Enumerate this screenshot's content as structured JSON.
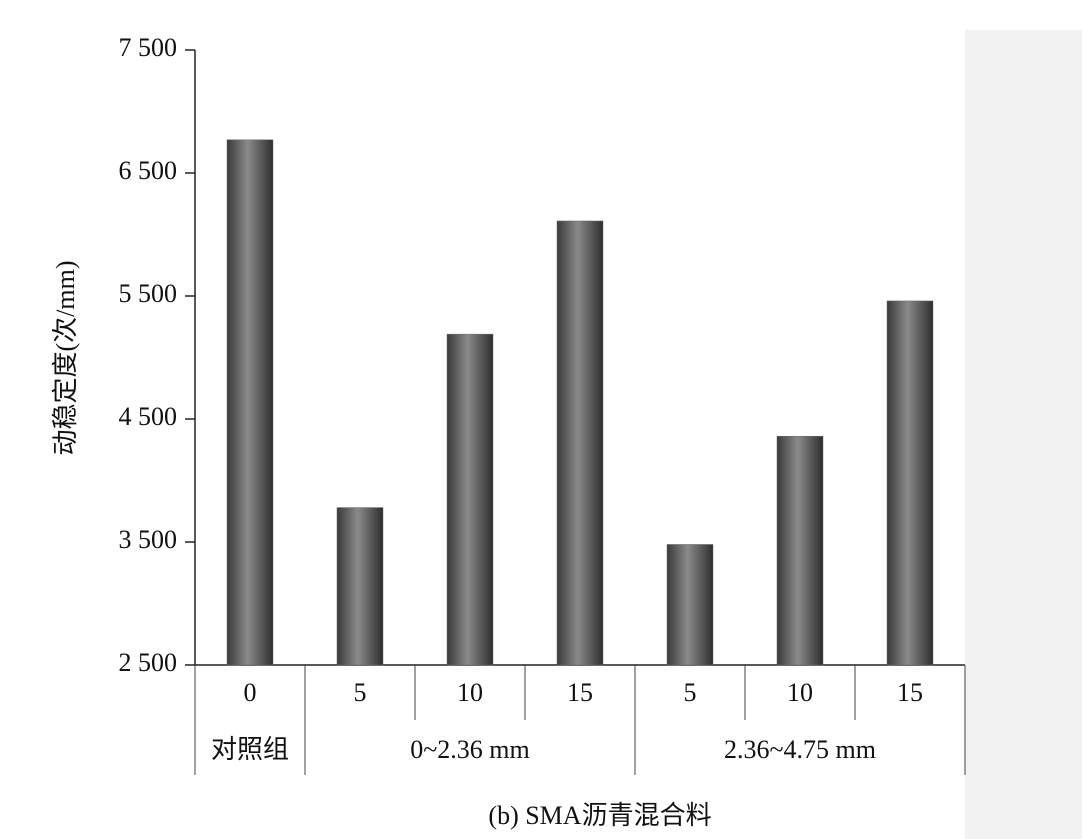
{
  "chart_data": {
    "type": "bar",
    "ylabel": "动稳定度(次/mm)",
    "xlabel": "(b) SMA沥青混合料",
    "categories": [
      "0",
      "5",
      "10",
      "15",
      "5",
      "10",
      "15"
    ],
    "groups": [
      {
        "label": "对照组",
        "count": 1
      },
      {
        "label": "0~2.36 mm",
        "count": 3
      },
      {
        "label": "2.36~4.75 mm",
        "count": 3
      }
    ],
    "values": [
      6770,
      3780,
      5190,
      6110,
      3480,
      4360,
      5460
    ],
    "color": "#6a6a6a",
    "ylim": [
      2500,
      7500
    ],
    "yticks": [
      {
        "value": 2500,
        "label": "2 500"
      },
      {
        "value": 3500,
        "label": "3 500"
      },
      {
        "value": 4500,
        "label": "4 500"
      },
      {
        "value": 5500,
        "label": "5 500"
      },
      {
        "value": 6500,
        "label": "6 500"
      },
      {
        "value": 7500,
        "label": "7 500"
      }
    ]
  }
}
